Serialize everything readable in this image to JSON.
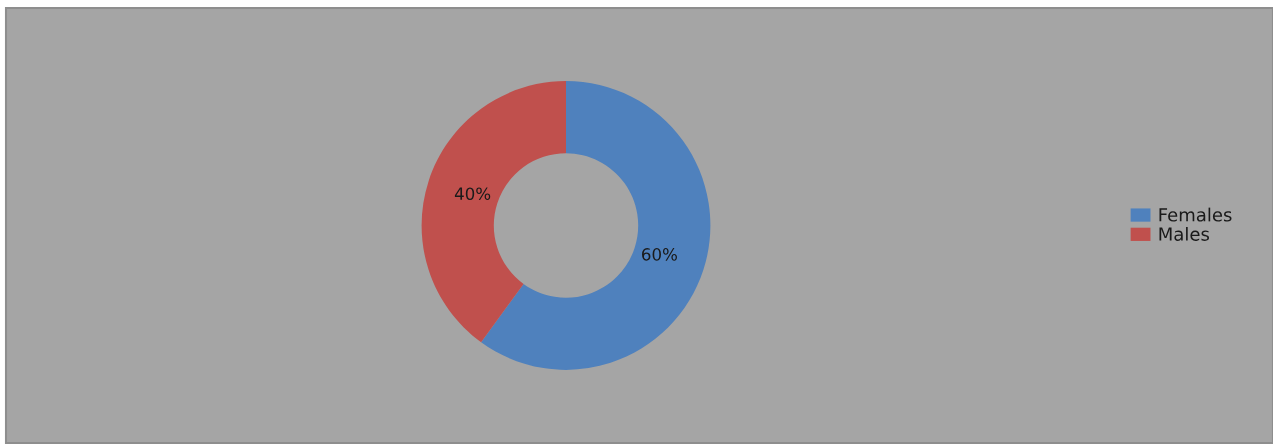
{
  "chart_data": {
    "type": "donut",
    "categories": [
      "Females",
      "Males"
    ],
    "values": [
      60,
      40
    ],
    "colors": [
      "#4f81bd",
      "#c0504d"
    ],
    "value_labels": [
      "60%",
      "40%"
    ],
    "legend": "right"
  }
}
